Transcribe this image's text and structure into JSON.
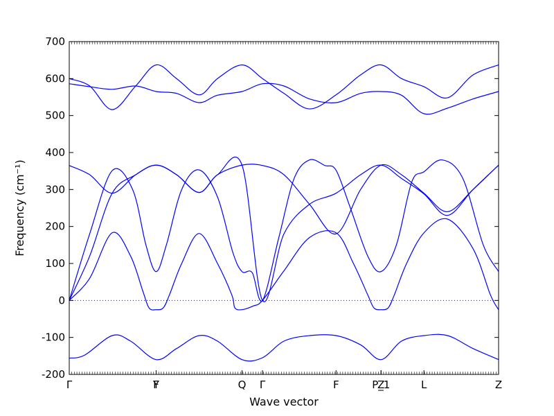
{
  "chart_data": {
    "type": "line",
    "xlabel": "Wave vector",
    "ylabel": "Frequency (cm⁻¹)",
    "ylim": [
      -200,
      700
    ],
    "yticks": [
      -200,
      -100,
      0,
      100,
      200,
      300,
      400,
      500,
      600,
      700
    ],
    "xlim": [
      0,
      4.2
    ],
    "kpoints": [
      {
        "label": "Γ",
        "x": 0.0
      },
      {
        "label": "Y",
        "x": 0.85
      },
      {
        "label": "F",
        "x": 0.85
      },
      {
        "label": "Q",
        "x": 1.69
      },
      {
        "label": "Γ",
        "x": 1.89
      },
      {
        "label": "F",
        "x": 2.61
      },
      {
        "label": "P_1",
        "x": 3.05
      },
      {
        "label": "Z",
        "x": 3.05
      },
      {
        "label": "L",
        "x": 3.47
      },
      {
        "label": "Z",
        "x": 4.2
      }
    ],
    "zero_line": true,
    "line_color": "#0000ff",
    "series": [
      {
        "x": [
          0,
          0.15,
          0.42,
          0.6,
          0.85,
          1.05,
          1.27,
          1.45,
          1.69,
          1.89,
          2.1,
          2.35,
          2.61,
          2.85,
          3.05,
          3.25,
          3.47,
          3.7,
          3.95,
          4.2
        ],
        "y": [
          -156,
          -148,
          -95,
          -110,
          -160,
          -130,
          -95,
          -110,
          -160,
          -155,
          -110,
          -95,
          -95,
          -120,
          -160,
          -110,
          -95,
          -95,
          -130,
          -160
        ]
      },
      {
        "x": [
          0,
          0.2,
          0.42,
          0.6,
          0.72,
          0.78,
          0.85,
          0.92,
          0.98,
          1.1,
          1.27,
          1.45,
          1.59,
          1.62,
          1.69,
          1.8,
          1.89,
          2.1,
          2.35,
          2.61,
          2.78,
          2.92,
          2.98,
          3.05,
          3.12,
          3.18,
          3.3,
          3.47,
          3.7,
          3.95,
          4.12,
          4.2
        ],
        "y": [
          0,
          60,
          183,
          120,
          25,
          -20,
          -25,
          -20,
          15,
          100,
          181,
          100,
          15,
          -20,
          -25,
          -15,
          0,
          80,
          170,
          183,
          100,
          15,
          -20,
          -25,
          -20,
          15,
          100,
          183,
          220,
          140,
          15,
          -25
        ]
      },
      {
        "x": [
          0,
          0.2,
          0.42,
          0.62,
          0.75,
          0.85,
          0.95,
          1.1,
          1.27,
          1.45,
          1.6,
          1.69,
          1.79,
          1.89,
          2.05,
          2.2,
          2.35,
          2.5,
          2.61,
          2.75,
          2.92,
          3.05,
          3.2,
          3.35,
          3.47,
          3.65,
          3.85,
          4.05,
          4.2
        ],
        "y": [
          0,
          180,
          351,
          300,
          150,
          78,
          150,
          300,
          353,
          280,
          130,
          78,
          75,
          0,
          170,
          330,
          380,
          365,
          352,
          250,
          120,
          78,
          150,
          320,
          348,
          380,
          330,
          150,
          78
        ]
      },
      {
        "x": [
          0,
          0.2,
          0.42,
          0.65,
          0.85,
          1.05,
          1.27,
          1.45,
          1.69,
          1.89,
          2.1,
          2.35,
          2.61,
          2.85,
          3.05,
          3.25,
          3.47,
          3.7,
          3.95,
          4.2
        ],
        "y": [
          365,
          340,
          290,
          340,
          366,
          340,
          292,
          340,
          366,
          365,
          340,
          260,
          180,
          300,
          366,
          340,
          290,
          240,
          300,
          366
        ]
      },
      {
        "x": [
          0,
          0.2,
          0.42,
          0.65,
          0.85,
          1.05,
          1.27,
          1.45,
          1.69,
          1.89,
          2.1,
          2.35,
          2.61,
          2.85,
          3.05,
          3.25,
          3.47,
          3.7,
          3.95,
          4.2
        ],
        "y": [
          0,
          120,
          290,
          340,
          366,
          340,
          292,
          340,
          366,
          0,
          180,
          260,
          290,
          340,
          366,
          330,
          288,
          230,
          300,
          366
        ]
      },
      {
        "x": [
          0,
          0.2,
          0.42,
          0.65,
          0.85,
          1.05,
          1.27,
          1.45,
          1.69,
          1.89,
          2.1,
          2.35,
          2.61,
          2.85,
          3.05,
          3.25,
          3.47,
          3.7,
          3.95,
          4.2
        ],
        "y": [
          586,
          578,
          571,
          580,
          565,
          560,
          535,
          555,
          565,
          586,
          580,
          545,
          535,
          560,
          565,
          555,
          505,
          520,
          545,
          565
        ]
      },
      {
        "x": [
          0,
          0.2,
          0.42,
          0.65,
          0.85,
          1.05,
          1.27,
          1.45,
          1.69,
          1.89,
          2.1,
          2.35,
          2.61,
          2.85,
          3.05,
          3.25,
          3.47,
          3.7,
          3.95,
          4.2
        ],
        "y": [
          600,
          580,
          516,
          580,
          637,
          600,
          556,
          600,
          637,
          600,
          560,
          518,
          556,
          610,
          637,
          600,
          578,
          548,
          610,
          637
        ]
      }
    ]
  }
}
